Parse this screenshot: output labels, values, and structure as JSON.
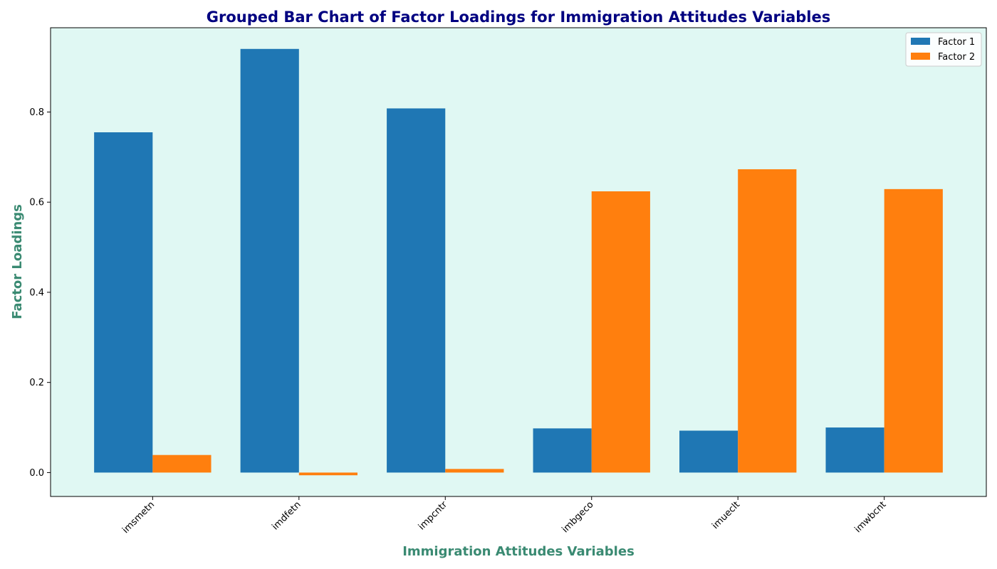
{
  "chart_data": {
    "type": "bar",
    "title": "Grouped Bar Chart of Factor Loadings for Immigration Attitudes Variables",
    "xlabel": "Immigration Attitudes Variables",
    "ylabel": "Factor Loadings",
    "categories": [
      "imsmetn",
      "imdfetn",
      "impcntr",
      "imbgeco",
      "imueclt",
      "imwbcnt"
    ],
    "series": [
      {
        "name": "Factor 1",
        "color": "#1f77b4",
        "values": [
          0.755,
          0.94,
          0.808,
          0.098,
          0.093,
          0.1
        ]
      },
      {
        "name": "Factor 2",
        "color": "#ff7f0e",
        "values": [
          0.039,
          -0.006,
          0.008,
          0.624,
          0.673,
          0.629
        ]
      }
    ],
    "ylim": [
      -0.053,
      0.987
    ],
    "yticks": [
      0.0,
      0.2,
      0.4,
      0.6,
      0.8
    ],
    "ytick_labels": [
      "0.0",
      "0.2",
      "0.4",
      "0.6",
      "0.8"
    ],
    "grid": false,
    "legend_position": "top-right",
    "colors": {
      "plot_background": "#e0f8f3",
      "title": "#000080",
      "axis_label": "#3a8a72"
    }
  }
}
